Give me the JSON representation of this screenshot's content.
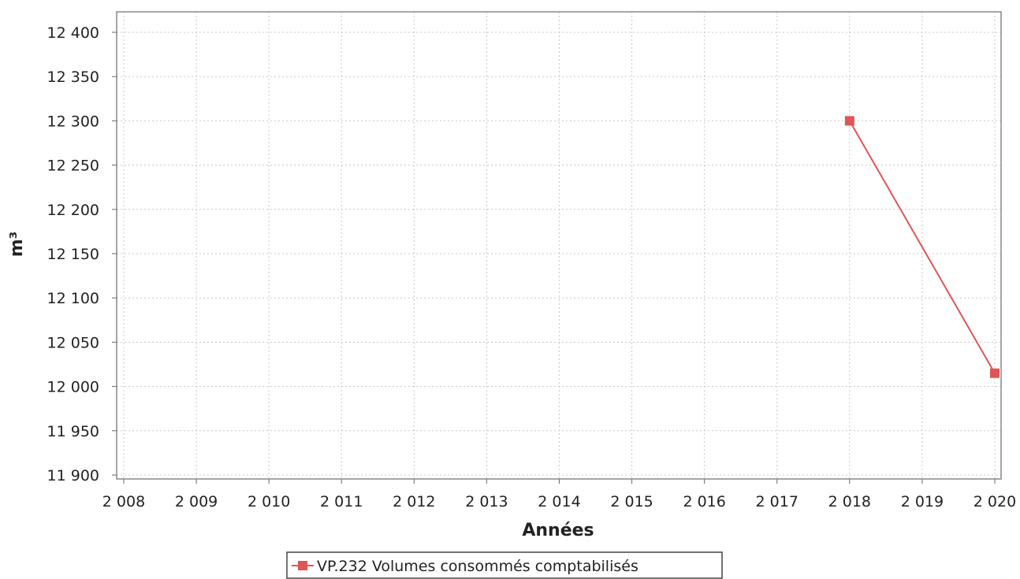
{
  "chart_data": {
    "type": "line",
    "xlabel": "Années",
    "ylabel": "m³",
    "x_ticks": [
      "2 008",
      "2 009",
      "2 010",
      "2 011",
      "2 012",
      "2 013",
      "2 014",
      "2 015",
      "2 016",
      "2 017",
      "2 018",
      "2 019",
      "2 020"
    ],
    "y_ticks": [
      "11 900",
      "11 950",
      "12 000",
      "12 050",
      "12 100",
      "12 150",
      "12 200",
      "12 250",
      "12 300",
      "12 350",
      "12 400"
    ],
    "xlim": [
      2008,
      2020
    ],
    "ylim": [
      11895,
      12420
    ],
    "grid": true,
    "legend_position": "bottom-center",
    "series": [
      {
        "name": "VP.232 Volumes consommés comptabilisés",
        "color": "#e05555",
        "x": [
          2018,
          2020
        ],
        "y": [
          12300,
          12015
        ]
      }
    ]
  }
}
